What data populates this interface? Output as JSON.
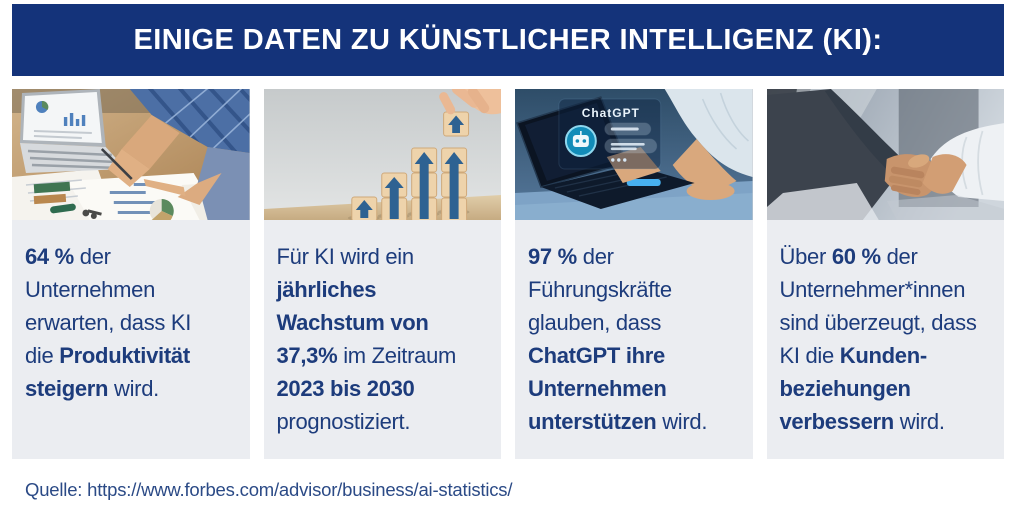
{
  "header": {
    "title": "EINIGE DATEN ZU KÜNSTLICHER INTELLIGENZ (KI):"
  },
  "cards": [
    {
      "id": "productivity",
      "photo": "office-teamwork-photo",
      "segments": [
        {
          "text": "64 %",
          "bold": true
        },
        {
          "text": " der\nUnternehmen\nerwarten, dass KI\ndie ",
          "bold": false
        },
        {
          "text": "Produktivität\nsteigern",
          "bold": true
        },
        {
          "text": " wird.",
          "bold": false
        }
      ]
    },
    {
      "id": "growth",
      "photo": "growth-blocks-photo",
      "segments": [
        {
          "text": "Für KI wird ein\n",
          "bold": false
        },
        {
          "text": "jährliches\nWachstum von\n37,3%",
          "bold": true
        },
        {
          "text": " im Zeitraum\n",
          "bold": false
        },
        {
          "text": "2023 bis 2030",
          "bold": true
        },
        {
          "text": "\nprognostiziert.",
          "bold": false
        }
      ]
    },
    {
      "id": "chatgpt",
      "photo": "chatgpt-laptop-photo",
      "photo_text": "ChatGPT",
      "segments": [
        {
          "text": "97 %",
          "bold": true
        },
        {
          "text": " der\nFührungskräfte\nglauben, dass\n",
          "bold": false
        },
        {
          "text": "ChatGPT ihre\nUnternehmen\nunterstützen",
          "bold": true
        },
        {
          "text": " wird.",
          "bold": false
        }
      ]
    },
    {
      "id": "customer-relations",
      "photo": "handshake-photo",
      "segments": [
        {
          "text": "Über ",
          "bold": false
        },
        {
          "text": "60 %",
          "bold": true
        },
        {
          "text": " der\nUnternehmer*innen\nsind überzeugt, dass\nKI die ",
          "bold": false
        },
        {
          "text": "Kunden-\nbeziehungen\nverbessern",
          "bold": true
        },
        {
          "text": " wird.",
          "bold": false
        }
      ]
    }
  ],
  "footer": {
    "source": "Quelle: https://www.forbes.com/advisor/business/ai-statistics/"
  },
  "colors": {
    "banner_bg": "#14337a",
    "card_bg": "#ebedf1",
    "text_navy": "#1d3c7c",
    "arrow_blue": "#2e6292",
    "robot_teal": "#128cb8"
  }
}
